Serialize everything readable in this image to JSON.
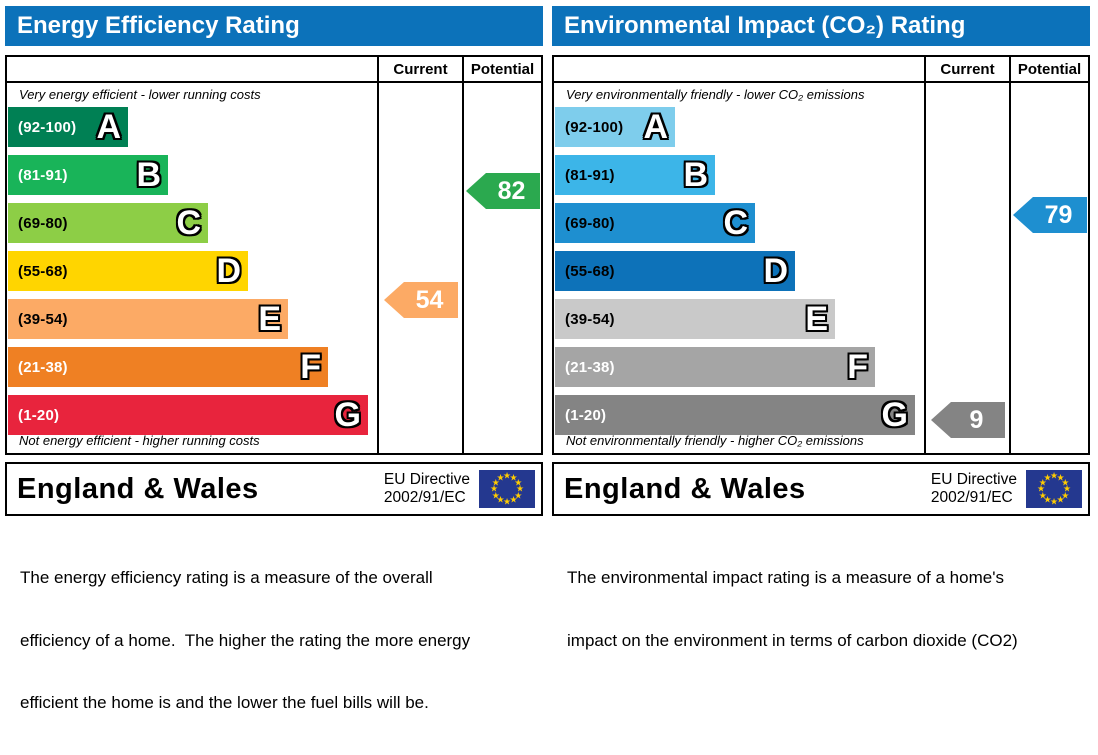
{
  "colors": {
    "header_bg": "#0c72ba",
    "eu_flag_bg": "#24388f",
    "eu_star": "#ffcc00"
  },
  "panels": [
    {
      "title": "Energy Efficiency Rating",
      "col_current": "Current",
      "col_potential": "Potential",
      "top_caption": "Very energy efficient - lower running costs",
      "bottom_caption": "Not energy efficient - higher running costs",
      "bands": [
        {
          "letter": "A",
          "range": "(92-100)",
          "bg": "#008054",
          "fg": "#ffffff"
        },
        {
          "letter": "B",
          "range": "(81-91)",
          "bg": "#19b459",
          "fg": "#ffffff"
        },
        {
          "letter": "C",
          "range": "(69-80)",
          "bg": "#8dce46",
          "fg": "#000000"
        },
        {
          "letter": "D",
          "range": "(55-68)",
          "bg": "#ffd500",
          "fg": "#000000"
        },
        {
          "letter": "E",
          "range": "(39-54)",
          "bg": "#fcaa65",
          "fg": "#000000"
        },
        {
          "letter": "F",
          "range": "(21-38)",
          "bg": "#ef8023",
          "fg": "#ffffff"
        },
        {
          "letter": "G",
          "range": "(1-20)",
          "bg": "#e8243d",
          "fg": "#ffffff"
        }
      ],
      "current": {
        "value": "54",
        "bg": "#fcaa65"
      },
      "potential": {
        "value": "82",
        "bg": "#2ba94f"
      },
      "footer": {
        "region": "England & Wales",
        "directive_line1": "EU Directive",
        "directive_line2": "2002/91/EC"
      },
      "description_lines": [
        "The energy efficiency rating is a measure of the overall",
        "efficiency of a home.  The higher the rating the more energy",
        "efficient the home is and the lower the fuel bills will be."
      ]
    },
    {
      "title": "Environmental Impact (CO₂) Rating",
      "col_current": "Current",
      "col_potential": "Potential",
      "top_caption": "Very environmentally friendly - lower CO₂ emissions",
      "bottom_caption": "Not environmentally friendly - higher CO₂ emissions",
      "bands": [
        {
          "letter": "A",
          "range": "(92-100)",
          "bg": "#7ecdec",
          "fg": "#000000"
        },
        {
          "letter": "B",
          "range": "(81-91)",
          "bg": "#3cb5e8",
          "fg": "#000000"
        },
        {
          "letter": "C",
          "range": "(69-80)",
          "bg": "#1e8fd0",
          "fg": "#000000"
        },
        {
          "letter": "D",
          "range": "(55-68)",
          "bg": "#0d72b9",
          "fg": "#000000"
        },
        {
          "letter": "E",
          "range": "(39-54)",
          "bg": "#c9c9c9",
          "fg": "#000000"
        },
        {
          "letter": "F",
          "range": "(21-38)",
          "bg": "#a5a5a5",
          "fg": "#ffffff"
        },
        {
          "letter": "G",
          "range": "(1-20)",
          "bg": "#848484",
          "fg": "#ffffff"
        }
      ],
      "current": {
        "value": "9",
        "bg": "#848484"
      },
      "potential": {
        "value": "79",
        "bg": "#1e8fd0"
      },
      "footer": {
        "region": "England & Wales",
        "directive_line1": "EU Directive",
        "directive_line2": "2002/91/EC"
      },
      "description_lines": [
        "The environmental impact rating is a measure of a home's",
        "impact on the environment in terms of carbon dioxide (CO2)"
      ]
    }
  ],
  "chart_data": [
    {
      "type": "bar",
      "title": "Energy Efficiency Rating",
      "categories": [
        "A",
        "B",
        "C",
        "D",
        "E",
        "F",
        "G"
      ],
      "band_ranges": [
        "92-100",
        "81-91",
        "69-80",
        "55-68",
        "39-54",
        "21-38",
        "1-20"
      ],
      "scale": [
        1,
        100
      ],
      "current": 54,
      "current_band": "E",
      "potential": 82,
      "potential_band": "B",
      "top_caption": "Very energy efficient - lower running costs",
      "bottom_caption": "Not energy efficient - higher running costs"
    },
    {
      "type": "bar",
      "title": "Environmental Impact (CO2) Rating",
      "categories": [
        "A",
        "B",
        "C",
        "D",
        "E",
        "F",
        "G"
      ],
      "band_ranges": [
        "92-100",
        "81-91",
        "69-80",
        "55-68",
        "39-54",
        "21-38",
        "1-20"
      ],
      "scale": [
        1,
        100
      ],
      "current": 9,
      "current_band": "G",
      "potential": 79,
      "potential_band": "C",
      "top_caption": "Very environmentally friendly - lower CO2 emissions",
      "bottom_caption": "Not environmentally friendly - higher CO2 emissions"
    }
  ]
}
